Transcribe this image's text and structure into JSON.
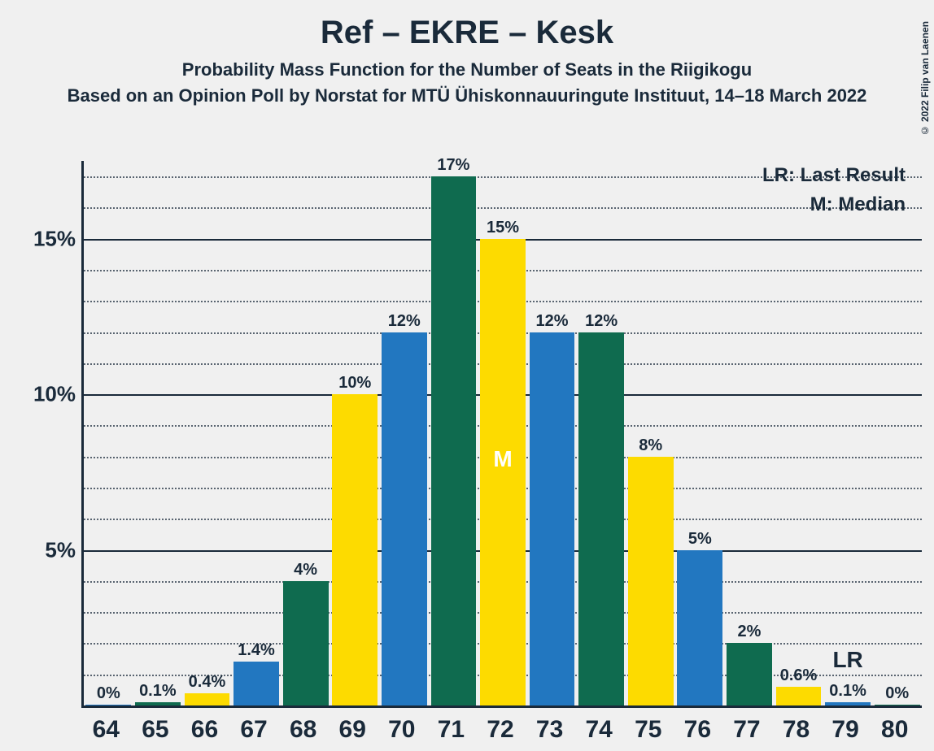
{
  "copyright": "© 2022 Filip van Laenen",
  "title": "Ref – EKRE – Kesk",
  "subtitle": "Probability Mass Function for the Number of Seats in the Riigikogu",
  "subtitle2": "Based on an Opinion Poll by Norstat for MTÜ Ühiskonnauuringute Instituut, 14–18 March 2022",
  "legend": {
    "lr": "LR: Last Result",
    "m": "M: Median"
  },
  "chart": {
    "type": "bar",
    "background_color": "#f0f0f0",
    "axis_color": "#1a2a3a",
    "text_color": "#1a2a3a",
    "font_family": "Segoe UI, Helvetica Neue, Arial, sans-serif",
    "title_fontsize": 40,
    "subtitle_fontsize": 22,
    "axis_label_fontsize": 26,
    "bar_label_fontsize": 20,
    "xlabel_fontsize": 30,
    "y_max": 17.5,
    "y_major_ticks": [
      5,
      10,
      15
    ],
    "y_minor_step": 1,
    "bar_width_ratio": 0.92,
    "colors": {
      "blue": "#2277c0",
      "green": "#0f6b4f",
      "yellow": "#fddb00"
    },
    "color_cycle": [
      "blue",
      "green",
      "yellow"
    ],
    "median_seat": 72,
    "last_result_seat": 79,
    "lr_label": "LR",
    "m_label": "M",
    "categories": [
      64,
      65,
      66,
      67,
      68,
      69,
      70,
      71,
      72,
      73,
      74,
      75,
      76,
      77,
      78,
      79,
      80
    ],
    "values": [
      0,
      0.1,
      0.4,
      1.4,
      4,
      10,
      12,
      17,
      15,
      12,
      12,
      8,
      5,
      2,
      0.6,
      0.1,
      0
    ],
    "value_labels": [
      "0%",
      "0.1%",
      "0.4%",
      "1.4%",
      "4%",
      "10%",
      "12%",
      "17%",
      "15%",
      "12%",
      "12%",
      "8%",
      "5%",
      "2%",
      "0.6%",
      "0.1%",
      "0%"
    ]
  }
}
